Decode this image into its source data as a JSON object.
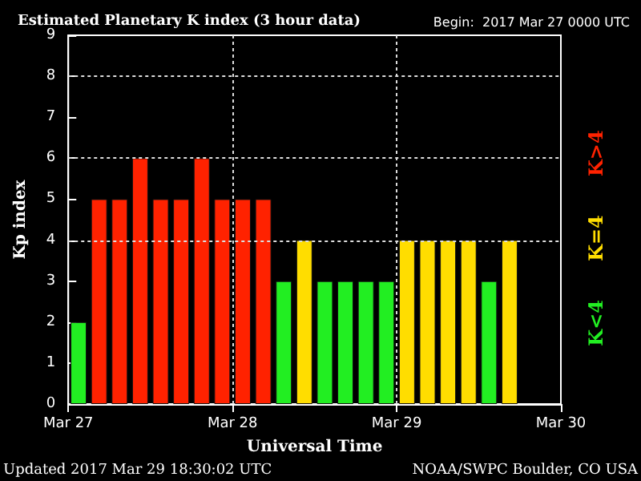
{
  "chart_data": {
    "type": "bar",
    "stacked": true,
    "title": "Estimated Planetary K index (3 hour data)",
    "subtitle": "Begin:  2017 Mar 27 0000 UTC",
    "xlabel": "Universal Time",
    "ylabel": "Kp index",
    "annotations": [
      "Updated 2017 Mar 29 18:30:02 UTC",
      "NOAA/SWPC Boulder, CO USA"
    ],
    "x": [
      "2017-03-27T01:30",
      "2017-03-27T04:30",
      "2017-03-27T07:30",
      "2017-03-27T10:30",
      "2017-03-27T13:30",
      "2017-03-27T16:30",
      "2017-03-27T19:30",
      "2017-03-27T22:30",
      "2017-03-28T01:30",
      "2017-03-28T04:30",
      "2017-03-28T07:30",
      "2017-03-28T10:30",
      "2017-03-28T13:30",
      "2017-03-28T16:30",
      "2017-03-28T19:30",
      "2017-03-28T22:30",
      "2017-03-29T01:30",
      "2017-03-29T04:30",
      "2017-03-29T07:30",
      "2017-03-29T10:30",
      "2017-03-29T13:30",
      "2017-03-29T16:30"
    ],
    "series": [
      {
        "name": "K<4",
        "color": "#22ee22",
        "values": [
          2,
          null,
          null,
          null,
          null,
          null,
          null,
          null,
          null,
          null,
          3,
          null,
          3,
          3,
          3,
          3,
          null,
          null,
          null,
          null,
          3,
          null
        ]
      },
      {
        "name": "K=4",
        "color": "#ffdd00",
        "values": [
          null,
          null,
          null,
          null,
          null,
          null,
          null,
          null,
          null,
          null,
          null,
          4,
          null,
          null,
          null,
          null,
          4,
          4,
          4,
          4,
          null,
          4
        ]
      },
      {
        "name": "K>4",
        "color": "#ff2200",
        "values": [
          null,
          5,
          5,
          6,
          5,
          5,
          6,
          5,
          5,
          5,
          null,
          null,
          null,
          null,
          null,
          null,
          null,
          null,
          null,
          null,
          null,
          null
        ]
      }
    ],
    "xlim": [
      "2017-03-27",
      "2017-03-30"
    ],
    "xticks": [
      {
        "value": "2017-03-27",
        "label": "Mar 27"
      },
      {
        "value": "2017-03-28",
        "label": "Mar 28"
      },
      {
        "value": "2017-03-29",
        "label": "Mar 29"
      },
      {
        "value": "2017-03-30",
        "label": "Mar 30"
      }
    ],
    "ylim": [
      0,
      9
    ],
    "yticks": [
      0,
      1,
      2,
      3,
      4,
      5,
      6,
      7,
      8,
      9
    ],
    "ref_lines": [
      {
        "axis": "y",
        "value": 4,
        "line_style": "dotted"
      },
      {
        "axis": "y",
        "value": 6,
        "line_style": "dotted"
      },
      {
        "axis": "y",
        "value": 8,
        "line_style": "dotted"
      },
      {
        "axis": "x",
        "value": "2017-03-28",
        "line_style": "dotted"
      },
      {
        "axis": "x",
        "value": "2017-03-29",
        "line_style": "dotted"
      }
    ],
    "grid": false,
    "legend": false
  }
}
